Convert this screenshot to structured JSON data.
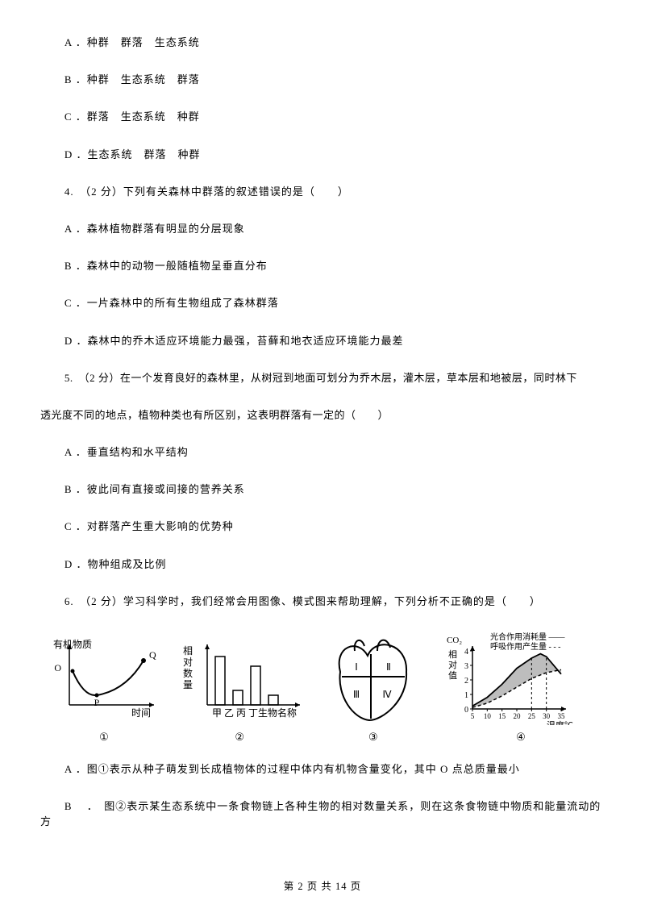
{
  "options_block1": {
    "A": "A ．种群　群落　生态系统",
    "B": "B ．种群　生态系统　群落",
    "C": "C ．群落　生态系统　种群",
    "D": "D ．生态系统　群落　种群"
  },
  "q4": {
    "stem": "4.　（2 分）下列有关森林中群落的叙述错误的是（　　）",
    "A": "A ．森林植物群落有明显的分层现象",
    "B": "B ．森林中的动物一般随植物呈垂直分布",
    "C": "C ．一片森林中的所有生物组成了森林群落",
    "D": "D ．森林中的乔木适应环境能力最强，苔藓和地衣适应环境能力最差"
  },
  "q5": {
    "stem_line1": "5.　（2 分）在一个发育良好的森林里，从树冠到地面可划分为乔木层，灌木层，草本层和地被层，同时林下",
    "stem_line2": "透光度不同的地点，植物种类也有所区别，这表明群落有一定的（　　）",
    "A": "A ．垂直结构和水平结构",
    "B": "B ．彼此间有直接或间接的营养关系",
    "C": "C ．对群落产生重大影响的优势种",
    "D": "D ．物种组成及比例"
  },
  "q6": {
    "stem": "6.　（2 分）学习科学时，我们经常会用图像、模式图来帮助理解，下列分析不正确的是（　　）",
    "A": "A ．图①表示从种子萌发到长成植物体的过程中体内有机物含量变化，其中 O 点总质量最小",
    "B": "B 　．　图②表示某生态系统中一条食物链上各种生物的相对数量关系，则在这条食物链中物质和能量流动的方"
  },
  "figures": {
    "fig1": {
      "number": "①",
      "y_label_lines": [
        "有机物质"
      ],
      "x_label": "时间",
      "point_labels": [
        "O",
        "P",
        "Q"
      ],
      "stroke": "#000000",
      "bg": "#ffffff",
      "fontsize": 12
    },
    "fig2": {
      "number": "②",
      "y_label_lines": [
        "相",
        "对",
        "数",
        "量"
      ],
      "x_label": "甲 乙 丙 丁生物名称",
      "bars": [
        1.0,
        0.3,
        0.8,
        0.2
      ],
      "stroke": "#000000",
      "fontsize": 12
    },
    "fig3": {
      "number": "③",
      "labels": [
        "Ⅰ",
        "Ⅱ",
        "Ⅲ",
        "Ⅳ"
      ],
      "stroke": "#000000",
      "fill": "#000000",
      "fontsize": 12
    },
    "fig4": {
      "number": "④",
      "y_label_top": "CO₂",
      "y_label_lines": [
        "相",
        "对",
        "值"
      ],
      "x_label": "温度℃",
      "legend": [
        "光合作用消耗量 ——",
        "呼吸作用产生量 - - -"
      ],
      "y_ticks": [
        0,
        1,
        2,
        3,
        4
      ],
      "x_ticks": [
        5,
        10,
        15,
        20,
        25,
        30,
        35
      ],
      "y_max": 4,
      "x_max": 35,
      "solid_curve": [
        [
          5,
          0.2
        ],
        [
          10,
          0.8
        ],
        [
          15,
          1.7
        ],
        [
          20,
          2.8
        ],
        [
          25,
          3.5
        ],
        [
          28,
          3.8
        ],
        [
          30,
          3.6
        ],
        [
          35,
          2.4
        ]
      ],
      "dashed_curve": [
        [
          5,
          0.1
        ],
        [
          10,
          0.4
        ],
        [
          15,
          0.9
        ],
        [
          20,
          1.5
        ],
        [
          25,
          2.1
        ],
        [
          30,
          2.5
        ],
        [
          35,
          2.7
        ]
      ],
      "area_fill": "#bdbdbd",
      "stroke": "#000000",
      "fontsize": 11
    }
  },
  "footer": "第 2 页 共 14 页"
}
